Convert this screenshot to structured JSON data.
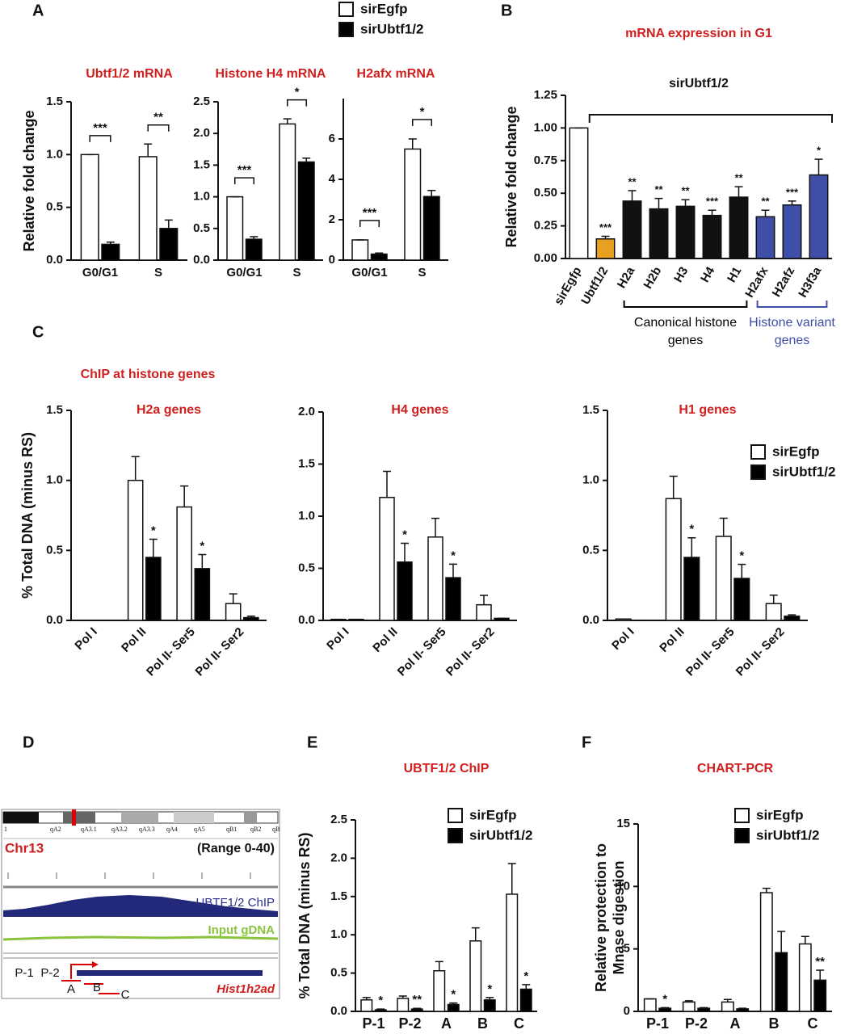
{
  "chart_data": [
    {
      "type": "bar",
      "panel": "A",
      "title": "Ubtf1/2 mRNA",
      "ylabel": "Relative fold change",
      "categories": [
        "G0/G1",
        "S"
      ],
      "series": [
        {
          "name": "sirEgfp",
          "color": "#ffffff",
          "values": [
            1.0,
            0.98
          ],
          "errors": [
            0,
            0.12
          ]
        },
        {
          "name": "sirUbtf1/2",
          "color": "#000000",
          "values": [
            0.15,
            0.3
          ],
          "errors": [
            0.02,
            0.08
          ]
        }
      ],
      "brackets": [
        "***",
        "**"
      ],
      "ylim": [
        0,
        1.5
      ],
      "yticks": [
        {
          "value": 0,
          "label": "0.0"
        },
        0.5,
        {
          "value": 1,
          "label": "1.0"
        },
        1.5
      ]
    },
    {
      "type": "bar",
      "title": "Histone H4 mRNA",
      "categories": [
        "G0/G1",
        "S"
      ],
      "series": [
        {
          "color": "#ffffff",
          "values": [
            1.0,
            2.15
          ],
          "errors": [
            0,
            0.08
          ]
        },
        {
          "color": "#000000",
          "values": [
            0.33,
            1.55
          ],
          "errors": [
            0.04,
            0.06
          ]
        }
      ],
      "brackets": [
        "***",
        "*"
      ],
      "ylim": [
        0,
        2.5
      ],
      "yticks": [
        {
          "value": 0,
          "label": "0.0"
        },
        0.5,
        {
          "value": 1,
          "label": "1.0"
        },
        1.5,
        {
          "value": 2,
          "label": "2.0"
        },
        2.5
      ]
    },
    {
      "type": "bar",
      "title": "H2afx mRNA",
      "categories": [
        "G0/G1",
        "S"
      ],
      "series": [
        {
          "color": "#ffffff",
          "values": [
            1.0,
            5.5
          ],
          "errors": [
            0,
            0.5
          ]
        },
        {
          "color": "#000000",
          "values": [
            0.3,
            3.15
          ],
          "errors": [
            0.05,
            0.3
          ]
        }
      ],
      "brackets": [
        "***",
        "*"
      ],
      "ylim": [
        0,
        8
      ],
      "yticks": [
        0,
        2,
        4,
        6
      ]
    },
    {
      "type": "bar",
      "panel": "B",
      "title": "mRNA expression in G1",
      "subtitle": "sirUbtf1/2",
      "ylabel": "Relative fold change",
      "categories": [
        "sirEgfp",
        "Ubtf1/2",
        "H2a",
        "H2b",
        "H3",
        "H4",
        "H1",
        "H2afx",
        "H2afz",
        "H3f3a"
      ],
      "values": [
        1.0,
        0.15,
        0.44,
        0.38,
        0.4,
        0.33,
        0.47,
        0.32,
        0.41,
        0.64
      ],
      "errors": [
        0,
        0.02,
        0.08,
        0.08,
        0.05,
        0.04,
        0.08,
        0.05,
        0.03,
        0.12
      ],
      "colors": [
        "#ffffff",
        "#e8a020",
        "#111111",
        "#111111",
        "#111111",
        "#111111",
        "#111111",
        "#3f4fa8",
        "#3f4fa8",
        "#3f4fa8"
      ],
      "stars": [
        null,
        "***",
        "**",
        "**",
        "**",
        "***",
        "**",
        "**",
        "***",
        "*"
      ],
      "groups": [
        {
          "label": [
            "Canonical histone",
            "genes"
          ],
          "color": "#000000"
        },
        {
          "label": [
            "Histone variant",
            "genes"
          ],
          "color": "#3f4fa8"
        }
      ],
      "ylim": [
        0,
        1.25
      ],
      "yticks": [
        {
          "value": 0,
          "label": "0.00"
        },
        0.25,
        {
          "value": 0.5,
          "label": "0.50"
        },
        0.75,
        {
          "value": 1,
          "label": "1.00"
        },
        1.25
      ]
    },
    {
      "type": "bar",
      "panel": "C",
      "heading": "ChIP at histone genes",
      "title": "H2a genes",
      "ylabel": "% Total  DNA (minus RS)",
      "categories": [
        "Pol I",
        "Pol II",
        "Pol II- Ser5",
        "Pol II- Ser2"
      ],
      "series": [
        {
          "color": "#ffffff",
          "values": [
            0,
            1.0,
            0.81,
            0.12
          ],
          "errors": [
            0,
            0.17,
            0.15,
            0.07
          ]
        },
        {
          "color": "#000000",
          "values": [
            0,
            0.45,
            0.37,
            0.02
          ],
          "errors": [
            0,
            0.13,
            0.1,
            0.01
          ],
          "stars": [
            null,
            "*",
            "*",
            null
          ]
        }
      ],
      "ylim": [
        0,
        1.5
      ],
      "yticks": [
        {
          "value": 0,
          "label": "0.0"
        },
        0.5,
        {
          "value": 1,
          "label": "1.0"
        },
        1.5
      ]
    },
    {
      "type": "bar",
      "title": "H4 genes",
      "categories": [
        "Pol I",
        "Pol II",
        "Pol II- Ser5",
        "Pol II- Ser2"
      ],
      "series": [
        {
          "color": "#ffffff",
          "values": [
            0.01,
            1.18,
            0.8,
            0.15
          ],
          "errors": [
            0,
            0.25,
            0.18,
            0.09
          ]
        },
        {
          "color": "#000000",
          "values": [
            0.01,
            0.56,
            0.41,
            0.02
          ],
          "errors": [
            0,
            0.18,
            0.13,
            0
          ],
          "stars": [
            null,
            "*",
            "*",
            null
          ]
        }
      ],
      "ylim": [
        0,
        2
      ],
      "yticks": [
        {
          "value": 0,
          "label": "0.0"
        },
        0.5,
        {
          "value": 1,
          "label": "1.0"
        },
        1.5,
        {
          "value": 2,
          "label": "2.0"
        }
      ]
    },
    {
      "type": "bar",
      "title": "H1 genes",
      "categories": [
        "Pol I",
        "Pol II",
        "Pol II- Ser5",
        "Pol II- Ser2"
      ],
      "series": [
        {
          "name": "sirEgfp",
          "color": "#ffffff",
          "values": [
            0.01,
            0.87,
            0.6,
            0.12
          ],
          "errors": [
            0,
            0.16,
            0.13,
            0.06
          ]
        },
        {
          "name": "sirUbtf1/2",
          "color": "#000000",
          "values": [
            0,
            0.45,
            0.3,
            0.03
          ],
          "errors": [
            0,
            0.14,
            0.1,
            0.01
          ],
          "stars": [
            null,
            "*",
            "*",
            null
          ]
        }
      ],
      "ylim": [
        0,
        1.5
      ],
      "yticks": [
        {
          "value": 0,
          "label": "0.0"
        },
        0.5,
        {
          "value": 1,
          "label": "1.0"
        },
        1.5
      ]
    },
    {
      "type": "bar",
      "panel": "E",
      "title": "UBTF1/2 ChIP",
      "ylabel": "% Total  DNA (minus RS)",
      "categories": [
        "P-1",
        "P-2",
        "A",
        "B",
        "C"
      ],
      "series": [
        {
          "name": "sirEgfp",
          "color": "#ffffff",
          "values": [
            0.15,
            0.17,
            0.53,
            0.92,
            1.53
          ],
          "errors": [
            0.03,
            0.03,
            0.12,
            0.17,
            0.4
          ]
        },
        {
          "name": "sirUbtf1/2",
          "color": "#000000",
          "values": [
            0.02,
            0.03,
            0.09,
            0.15,
            0.29
          ],
          "errors": [
            0.01,
            0.01,
            0.02,
            0.03,
            0.06
          ],
          "stars": [
            "*",
            "**",
            "*",
            "*",
            "*"
          ]
        }
      ],
      "ylim": [
        0,
        2.5
      ],
      "yticks": [
        {
          "value": 0,
          "label": "0.0"
        },
        0.5,
        {
          "value": 1,
          "label": "1.0"
        },
        1.5,
        {
          "value": 2,
          "label": "2.0"
        },
        2.5
      ]
    },
    {
      "type": "bar",
      "panel": "F",
      "title": "CHART-PCR",
      "ylabel": [
        "Relative protection to",
        "Mnase digestion"
      ],
      "categories": [
        "P-1",
        "P-2",
        "A",
        "B",
        "C"
      ],
      "series": [
        {
          "name": "sirEgfp",
          "color": "#ffffff",
          "values": [
            1.0,
            0.75,
            0.75,
            9.5,
            5.4
          ],
          "errors": [
            0,
            0.1,
            0.2,
            0.35,
            0.6
          ]
        },
        {
          "name": "sirUbtf1/2",
          "color": "#000000",
          "values": [
            0.25,
            0.25,
            0.2,
            4.7,
            2.5
          ],
          "errors": [
            0.05,
            0.05,
            0.05,
            1.7,
            0.8
          ],
          "stars": [
            "*",
            null,
            null,
            null,
            "**"
          ]
        }
      ],
      "ylim": [
        0,
        15
      ],
      "yticks": [
        0,
        5,
        10,
        15
      ]
    }
  ],
  "genome_view": {
    "panel": "D",
    "chromosome": "Chr13",
    "range": "(Range 0-40)",
    "bands": [
      "1",
      "qA2",
      "qA3.1",
      "qA3.2",
      "qA3.3",
      "qA4",
      "qA5",
      "qB1",
      "qB2",
      "qB"
    ],
    "tracks": [
      "UBTF1/2 ChIP",
      "Input gDNA"
    ],
    "primers": [
      "P-1",
      "P-2",
      "A",
      "B",
      "C"
    ],
    "gene": "Hist1h2ad"
  }
}
